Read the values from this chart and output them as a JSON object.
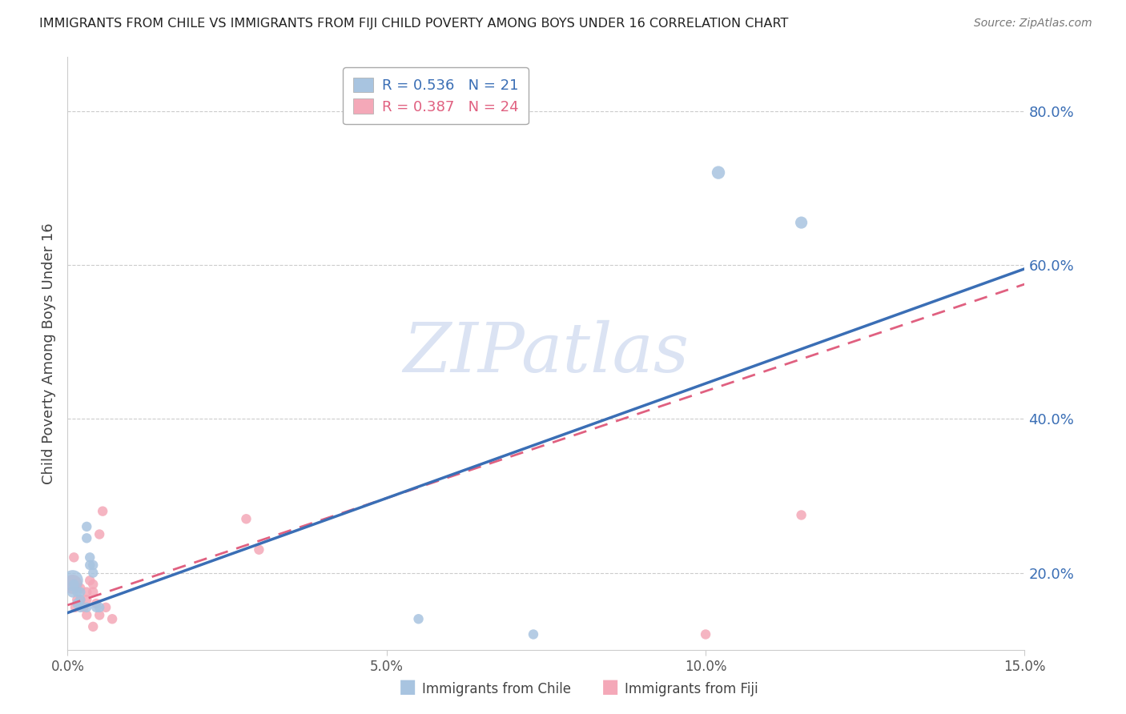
{
  "title": "IMMIGRANTS FROM CHILE VS IMMIGRANTS FROM FIJI CHILD POVERTY AMONG BOYS UNDER 16 CORRELATION CHART",
  "source": "Source: ZipAtlas.com",
  "ylabel": "Child Poverty Among Boys Under 16",
  "xlim": [
    0.0,
    0.15
  ],
  "ylim": [
    0.1,
    0.87
  ],
  "right_yticks": [
    0.2,
    0.4,
    0.6,
    0.8
  ],
  "right_yticklabels": [
    "20.0%",
    "40.0%",
    "60.0%",
    "80.0%"
  ],
  "xticks": [
    0.0,
    0.05,
    0.1,
    0.15
  ],
  "xticklabels": [
    "0.0%",
    "5.0%",
    "10.0%",
    "15.0%"
  ],
  "chile_R": 0.536,
  "chile_N": 21,
  "fiji_R": 0.387,
  "fiji_N": 24,
  "chile_color": "#a8c4e0",
  "fiji_color": "#f4a8b8",
  "trendline_chile_color": "#3a6eb5",
  "trendline_fiji_color": "#e06080",
  "watermark_text": "ZIPatlas",
  "watermark_color": "#ccd8ee",
  "chile_trend_x0": 0.0,
  "chile_trend_y0": 0.148,
  "chile_trend_x1": 0.15,
  "chile_trend_y1": 0.595,
  "fiji_trend_x0": 0.0,
  "fiji_trend_y0": 0.158,
  "fiji_trend_x1": 0.15,
  "fiji_trend_y1": 0.575,
  "chile_x": [
    0.0008,
    0.0008,
    0.001,
    0.0015,
    0.0015,
    0.002,
    0.002,
    0.002,
    0.003,
    0.003,
    0.003,
    0.0035,
    0.0035,
    0.004,
    0.004,
    0.0045,
    0.005,
    0.055,
    0.073,
    0.102,
    0.115
  ],
  "chile_y": [
    0.19,
    0.175,
    0.185,
    0.175,
    0.16,
    0.175,
    0.165,
    0.155,
    0.26,
    0.245,
    0.155,
    0.22,
    0.21,
    0.21,
    0.2,
    0.155,
    0.155,
    0.14,
    0.12,
    0.72,
    0.655
  ],
  "fiji_x": [
    0.0008,
    0.001,
    0.0012,
    0.0015,
    0.002,
    0.002,
    0.0025,
    0.003,
    0.003,
    0.003,
    0.0035,
    0.004,
    0.004,
    0.004,
    0.0045,
    0.005,
    0.005,
    0.0055,
    0.006,
    0.007,
    0.028,
    0.03,
    0.1,
    0.115
  ],
  "fiji_y": [
    0.185,
    0.22,
    0.155,
    0.165,
    0.18,
    0.165,
    0.155,
    0.175,
    0.165,
    0.145,
    0.19,
    0.185,
    0.175,
    0.13,
    0.16,
    0.145,
    0.25,
    0.28,
    0.155,
    0.14,
    0.27,
    0.23,
    0.12,
    0.275
  ],
  "chile_sizes": [
    350,
    100,
    80,
    80,
    80,
    80,
    80,
    80,
    80,
    80,
    80,
    80,
    80,
    80,
    80,
    80,
    80,
    80,
    80,
    140,
    120
  ],
  "fiji_sizes": [
    300,
    80,
    80,
    80,
    80,
    80,
    80,
    80,
    80,
    80,
    80,
    80,
    80,
    80,
    80,
    80,
    80,
    80,
    80,
    80,
    80,
    80,
    80,
    80
  ]
}
